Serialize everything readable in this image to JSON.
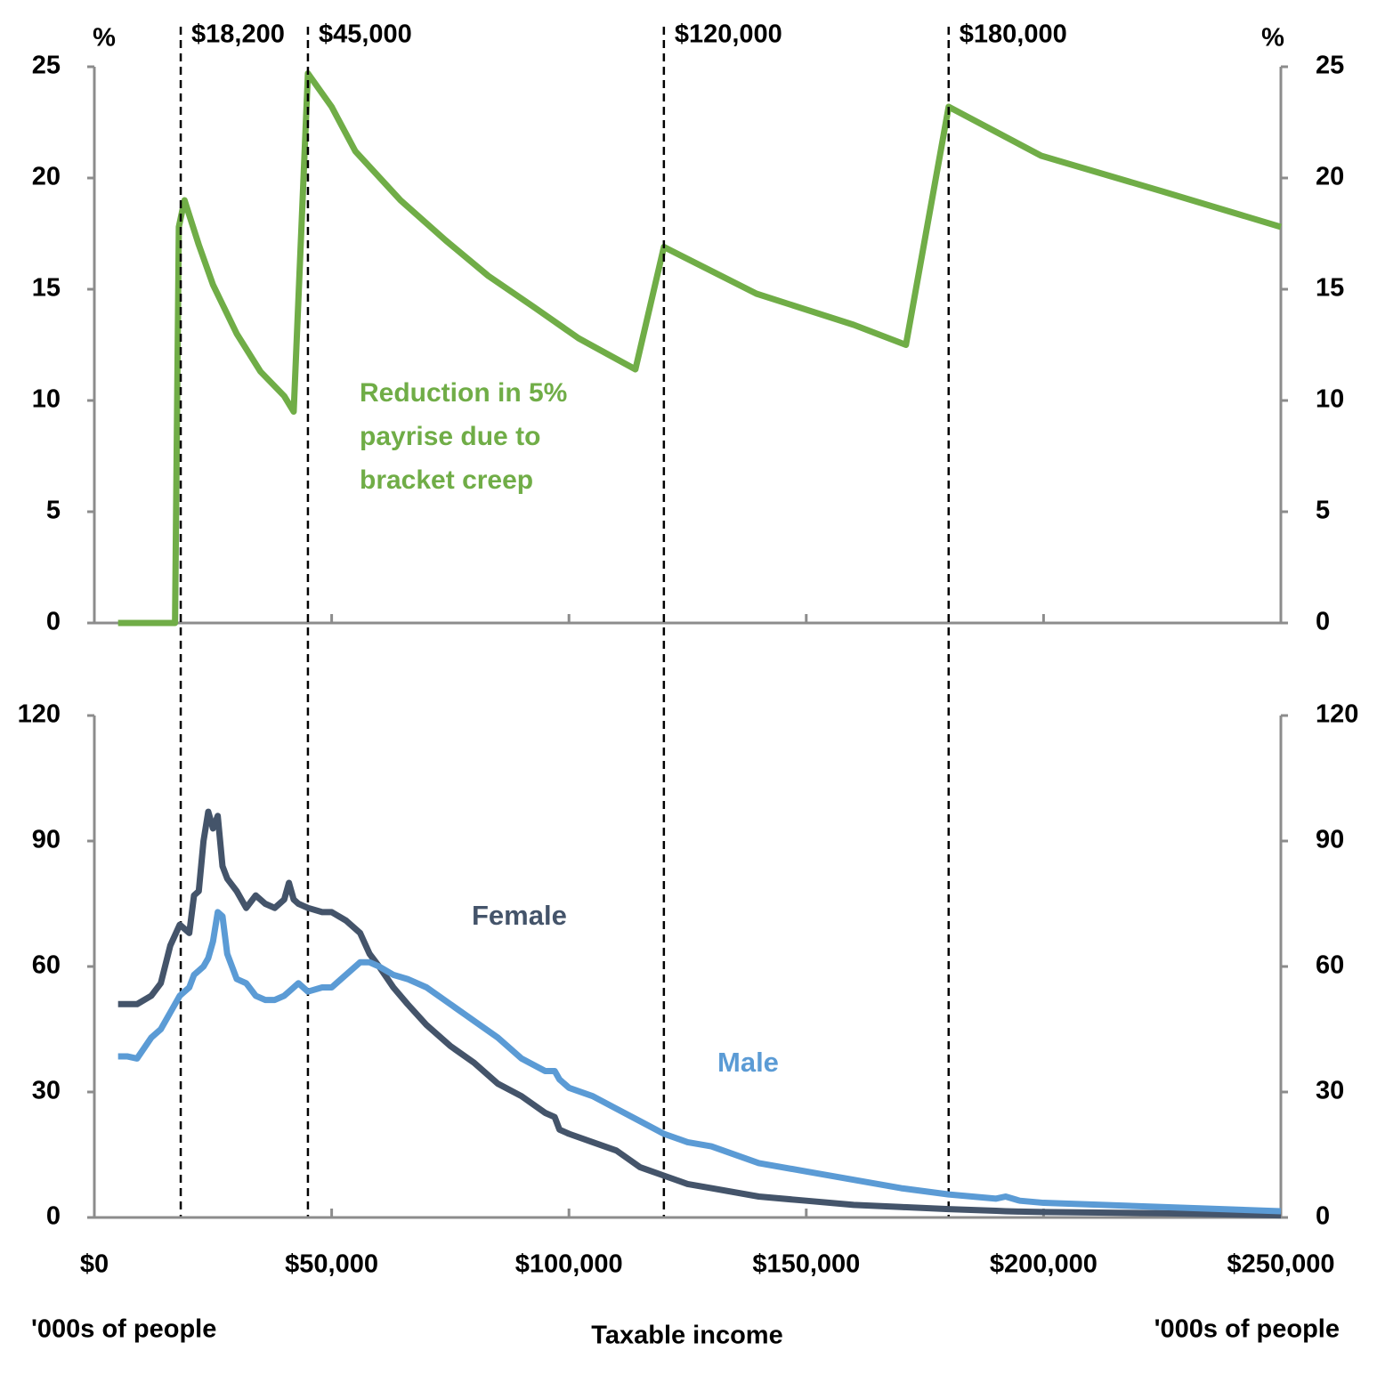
{
  "chart_data": [
    {
      "type": "line",
      "y_label": "%",
      "x": [
        5000,
        17000,
        17800,
        19000,
        22000,
        25000,
        30000,
        35000,
        40000,
        42000,
        45000,
        50000,
        55000,
        64500,
        74000,
        83000,
        92600,
        102000,
        114000,
        120000,
        139500,
        160000,
        171000,
        180000,
        199500,
        225000,
        250000
      ],
      "series": [
        {
          "name": "Reduction in 5% payrise due to bracket creep",
          "color": "#70ad47",
          "values": [
            0,
            0,
            17.8,
            19,
            17,
            15.2,
            13,
            11.3,
            10.2,
            9.5,
            24.7,
            23.2,
            21.2,
            19,
            17.2,
            15.6,
            14.2,
            12.8,
            11.4,
            16.9,
            14.8,
            13.4,
            12.5,
            23.2,
            21,
            19.4,
            17.8
          ]
        }
      ],
      "xlim": [
        0,
        250000
      ],
      "ylim": [
        0,
        25
      ],
      "yticks": [
        0,
        5,
        10,
        15,
        20,
        25
      ],
      "thresholds": [
        {
          "value": 18200,
          "label": "$18,200"
        },
        {
          "value": 45000,
          "label": "$45,000"
        },
        {
          "value": 120000,
          "label": "$120,000"
        },
        {
          "value": 180000,
          "label": "$180,000"
        }
      ]
    },
    {
      "type": "line",
      "x_label": "Taxable income",
      "y_label": "'000s of people",
      "x": [
        5000,
        7000,
        9000,
        12000,
        14000,
        16000,
        18000,
        20000,
        21000,
        22000,
        23000,
        24000,
        25000,
        26000,
        27000,
        28000,
        30000,
        32000,
        34000,
        36000,
        38000,
        40000,
        41000,
        42000,
        43000,
        45000,
        48000,
        50000,
        53000,
        56000,
        58000,
        60000,
        63000,
        66000,
        70000,
        75000,
        80000,
        85000,
        90000,
        95000,
        97000,
        98000,
        100000,
        105000,
        110000,
        115000,
        120000,
        125000,
        130000,
        140000,
        150000,
        160000,
        170000,
        180000,
        190000,
        192000,
        195000,
        200000,
        225000,
        250000
      ],
      "series": [
        {
          "name": "Female",
          "color": "#44546a",
          "values": [
            51,
            51,
            51,
            53,
            56,
            65,
            70,
            68,
            77,
            78,
            90,
            97,
            93,
            96,
            84,
            81,
            78,
            74,
            77,
            75,
            74,
            76,
            80,
            76,
            75,
            74,
            73,
            73,
            71,
            68,
            63,
            60,
            55,
            51,
            46,
            41,
            37,
            32,
            29,
            25,
            24,
            21,
            20,
            18,
            16,
            12,
            10,
            8,
            7,
            5,
            4,
            3,
            2.5,
            2,
            1.6,
            1.5,
            1.4,
            1.3,
            1,
            0.5
          ]
        },
        {
          "name": "Male",
          "color": "#5b9bd5",
          "values": [
            38.5,
            38.5,
            38,
            43,
            45,
            49,
            53,
            55,
            58,
            59,
            60,
            62,
            66,
            73,
            72,
            63,
            57,
            56,
            53,
            52,
            52,
            53,
            54,
            55,
            56,
            54,
            55,
            55,
            58,
            61,
            61,
            60,
            58,
            57,
            55,
            51,
            47,
            43,
            38,
            35,
            35,
            33,
            31,
            29,
            26,
            23,
            20,
            18,
            17,
            13,
            11,
            9,
            7,
            5.5,
            4.5,
            5,
            4,
            3.5,
            2.5,
            1.5
          ]
        }
      ],
      "xlim": [
        0,
        250000
      ],
      "xticks": [
        {
          "value": 0,
          "label": "$0"
        },
        {
          "value": 50000,
          "label": "$50,000"
        },
        {
          "value": 100000,
          "label": "$100,000"
        },
        {
          "value": 150000,
          "label": "$150,000"
        },
        {
          "value": 200000,
          "label": "$200,000"
        },
        {
          "value": 250000,
          "label": "$250,000"
        }
      ],
      "ylim": [
        0,
        120
      ],
      "yticks": [
        0,
        30,
        60,
        90,
        120
      ]
    }
  ]
}
